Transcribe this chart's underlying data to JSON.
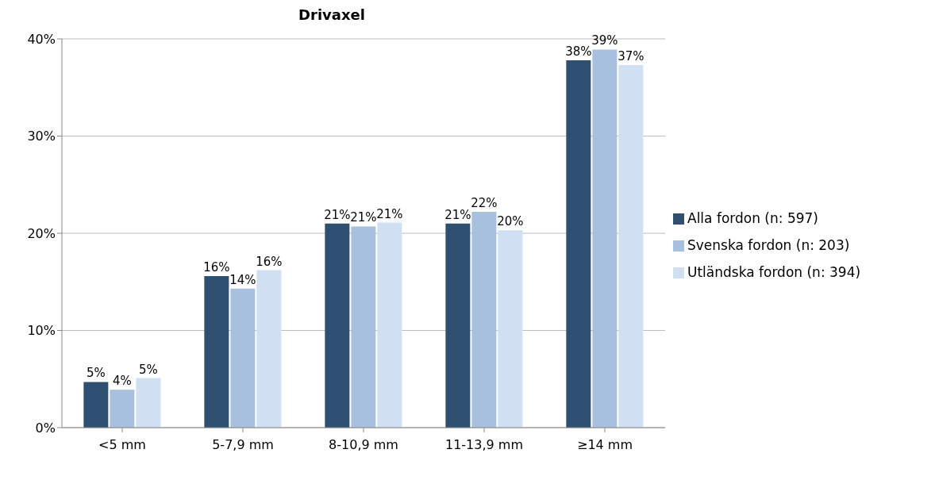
{
  "chart_data": {
    "type": "bar",
    "title": "Drivaxel",
    "categories": [
      "<5 mm",
      "5-7,9 mm",
      "8-10,9 mm",
      "11-13,9 mm",
      "≥14 mm"
    ],
    "series": [
      {
        "name": "Alla fordon (n: 597)",
        "color": "#2f5070",
        "values": [
          4.7,
          15.6,
          21.0,
          21.0,
          37.8
        ],
        "value_labels": [
          "5%",
          "16%",
          "21%",
          "21%",
          "38%"
        ]
      },
      {
        "name": "Svenska fordon (n: 203)",
        "color": "#a6c0dd",
        "values": [
          3.9,
          14.3,
          20.7,
          22.2,
          38.9
        ],
        "value_labels": [
          "4%",
          "14%",
          "21%",
          "22%",
          "39%"
        ]
      },
      {
        "name": "Utländska fordon (n: 394)",
        "color": "#d0dff1",
        "values": [
          5.1,
          16.2,
          21.1,
          20.3,
          37.3
        ],
        "value_labels": [
          "5%",
          "16%",
          "21%",
          "20%",
          "37%"
        ]
      }
    ],
    "ylim": [
      0,
      40
    ],
    "yticks": [
      {
        "value": 0,
        "label": "0%"
      },
      {
        "value": 10,
        "label": "10%"
      },
      {
        "value": 20,
        "label": "20%"
      },
      {
        "value": 30,
        "label": "30%"
      },
      {
        "value": 40,
        "label": "40%"
      }
    ],
    "grid": "y",
    "legend": "right"
  }
}
